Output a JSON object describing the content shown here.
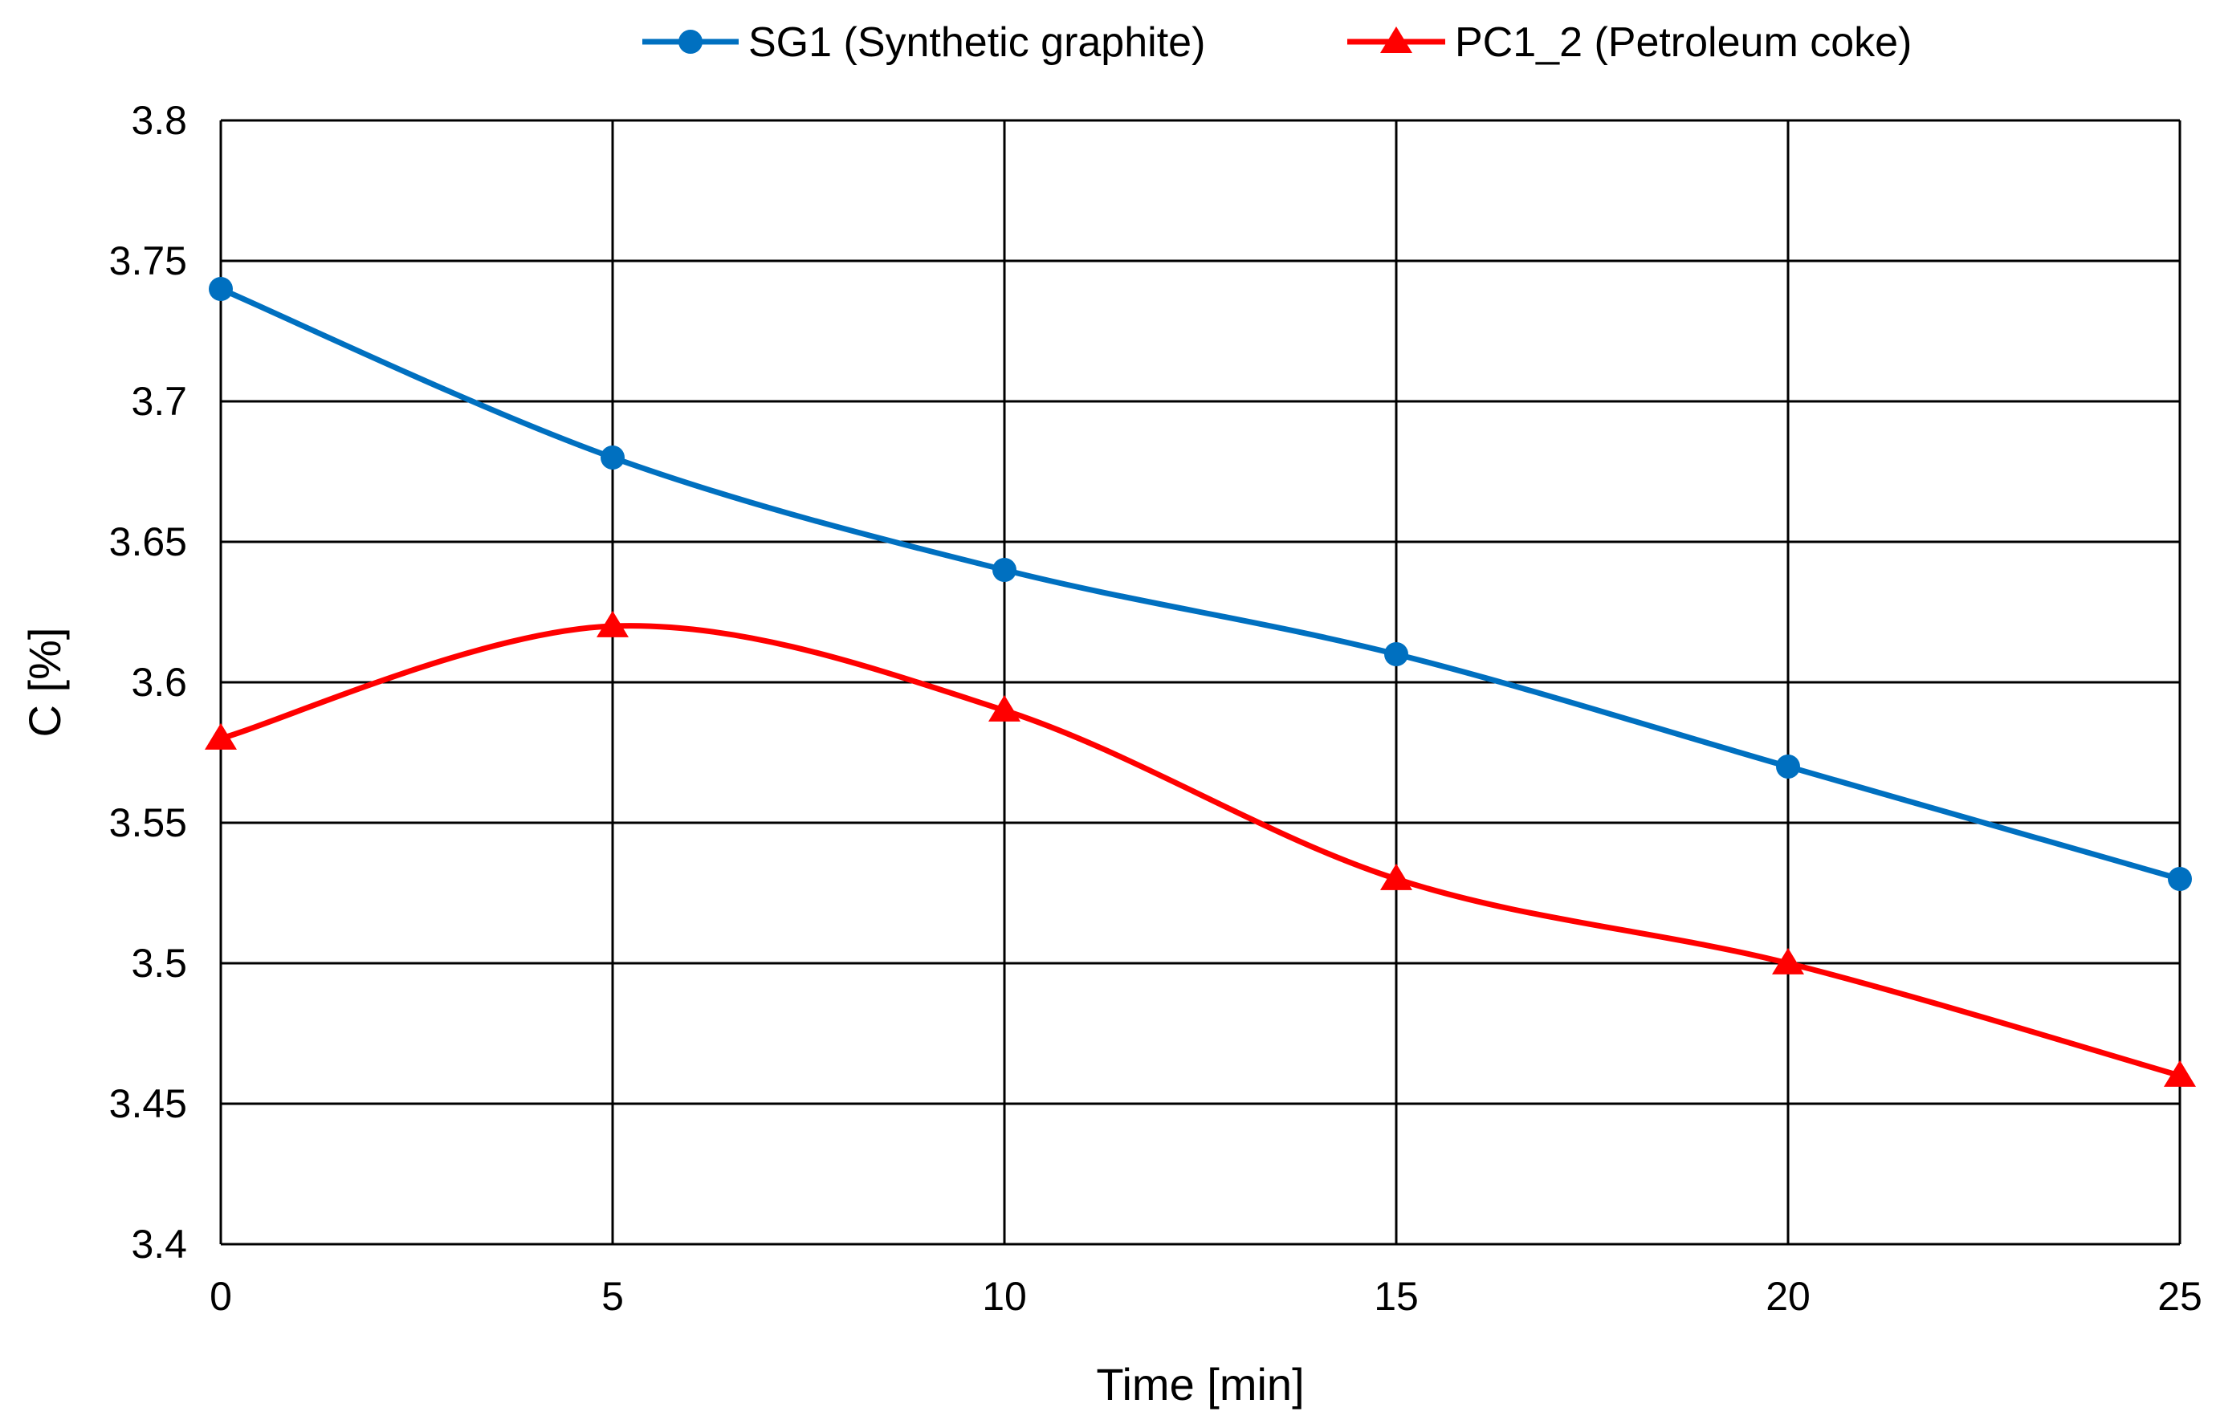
{
  "chart_data": {
    "type": "line",
    "title": "",
    "xlabel": "Time  [min]",
    "ylabel": "C [%]",
    "x": [
      0,
      5,
      10,
      15,
      20,
      25
    ],
    "xlim": [
      0,
      25
    ],
    "ylim": [
      3.4,
      3.8
    ],
    "x_ticks": [
      "0",
      "5",
      "10",
      "15",
      "20",
      "25"
    ],
    "y_ticks": [
      "3.4",
      "3.45",
      "3.5",
      "3.55",
      "3.6",
      "3.65",
      "3.7",
      "3.75",
      "3.8"
    ],
    "grid": true,
    "legend_position": "top-center",
    "series": [
      {
        "name": "SG1 (Synthetic graphite)",
        "marker": "circle",
        "color": "#0070C0",
        "values": [
          3.74,
          3.68,
          3.64,
          3.61,
          3.57,
          3.53
        ]
      },
      {
        "name": "PC1_2 (Petroleum coke)",
        "marker": "triangle",
        "color": "#FF0000",
        "values": [
          3.58,
          3.62,
          3.59,
          3.53,
          3.5,
          3.46
        ]
      }
    ]
  }
}
